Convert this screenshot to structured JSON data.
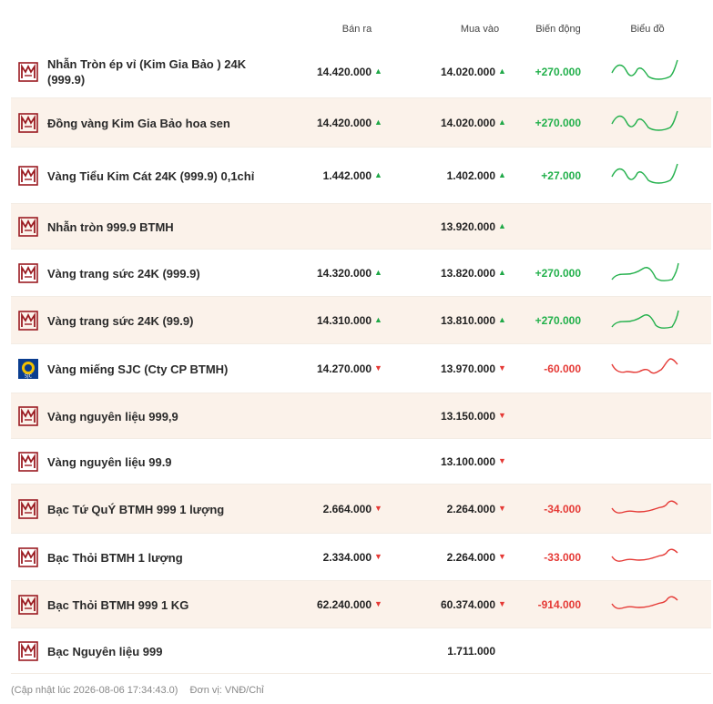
{
  "header": {
    "sell": "Bán ra",
    "buy": "Mua vào",
    "change": "Biến động",
    "chart": "Biểu đồ"
  },
  "colors": {
    "up": "#22b04b",
    "down": "#e53935",
    "brand": "#9b1c22",
    "alt_row": "#fbf2ea"
  },
  "rows": [
    {
      "logo": "btmh-logo-icon",
      "name": "Nhẫn Tròn ép vỉ (Kim Gia Bảo ) 24K (999.9)",
      "sell": "14.420.000",
      "sell_dir": "up",
      "buy": "14.020.000",
      "buy_dir": "up",
      "change": "+270.000",
      "change_dir": "up",
      "spark": "up"
    },
    {
      "logo": "btmh-logo-icon",
      "name": "Đồng vàng Kim Gia Bảo hoa sen",
      "sell": "14.420.000",
      "sell_dir": "up",
      "buy": "14.020.000",
      "buy_dir": "up",
      "change": "+270.000",
      "change_dir": "up",
      "spark": "up"
    },
    {
      "logo": "btmh-logo-icon",
      "name": "Vàng Tiểu Kim Cát 24K (999.9) 0,1chỉ",
      "sell": "1.442.000",
      "sell_dir": "up",
      "buy": "1.402.000",
      "buy_dir": "up",
      "change": "+27.000",
      "change_dir": "up",
      "spark": "up"
    },
    {
      "logo": "btmh-logo-icon",
      "name": "Nhẫn tròn 999.9 BTMH",
      "sell": "",
      "sell_dir": "",
      "buy": "13.920.000",
      "buy_dir": "up",
      "change": "",
      "change_dir": "",
      "spark": ""
    },
    {
      "logo": "btmh-logo-icon",
      "name": "Vàng trang sức 24K (999.9)",
      "sell": "14.320.000",
      "sell_dir": "up",
      "buy": "13.820.000",
      "buy_dir": "up",
      "change": "+270.000",
      "change_dir": "up",
      "spark": "up2"
    },
    {
      "logo": "btmh-logo-icon",
      "name": "Vàng trang sức 24K (99.9)",
      "sell": "14.310.000",
      "sell_dir": "up",
      "buy": "13.810.000",
      "buy_dir": "up",
      "change": "+270.000",
      "change_dir": "up",
      "spark": "up2"
    },
    {
      "logo": "sjc-logo-icon",
      "name": "Vàng miếng SJC (Cty CP BTMH)",
      "sell": "14.270.000",
      "sell_dir": "down",
      "buy": "13.970.000",
      "buy_dir": "down",
      "change": "-60.000",
      "change_dir": "down",
      "spark": "down"
    },
    {
      "logo": "btmh-logo-icon",
      "name": "Vàng nguyên liệu 999,9",
      "sell": "",
      "sell_dir": "",
      "buy": "13.150.000",
      "buy_dir": "down",
      "change": "",
      "change_dir": "",
      "spark": ""
    },
    {
      "logo": "btmh-logo-icon",
      "name": "Vàng nguyên liệu 99.9",
      "sell": "",
      "sell_dir": "",
      "buy": "13.100.000",
      "buy_dir": "down",
      "change": "",
      "change_dir": "",
      "spark": ""
    },
    {
      "logo": "btmh-logo-icon",
      "name": "Bạc Tứ QuÝ BTMH 999 1 lượng",
      "sell": "2.664.000",
      "sell_dir": "down",
      "buy": "2.264.000",
      "buy_dir": "down",
      "change": "-34.000",
      "change_dir": "down",
      "spark": "down2"
    },
    {
      "logo": "btmh-logo-icon",
      "name": "Bạc Thỏi BTMH 1 lượng",
      "sell": "2.334.000",
      "sell_dir": "down",
      "buy": "2.264.000",
      "buy_dir": "down",
      "change": "-33.000",
      "change_dir": "down",
      "spark": "down2"
    },
    {
      "logo": "btmh-logo-icon",
      "name": "Bạc Thỏi BTMH 999 1 KG",
      "sell": "62.240.000",
      "sell_dir": "down",
      "buy": "60.374.000",
      "buy_dir": "down",
      "change": "-914.000",
      "change_dir": "down",
      "spark": "down2"
    },
    {
      "logo": "btmh-logo-icon",
      "name": "Bạc Nguyên liệu 999",
      "sell": "",
      "sell_dir": "",
      "buy": "1.711.000",
      "buy_dir": "",
      "change": "",
      "change_dir": "",
      "spark": ""
    }
  ],
  "footer": {
    "updated": "(Cập nhật lúc 2026-08-06 17:34:43.0)",
    "unit": "Đơn vị: VNĐ/Chỉ"
  }
}
